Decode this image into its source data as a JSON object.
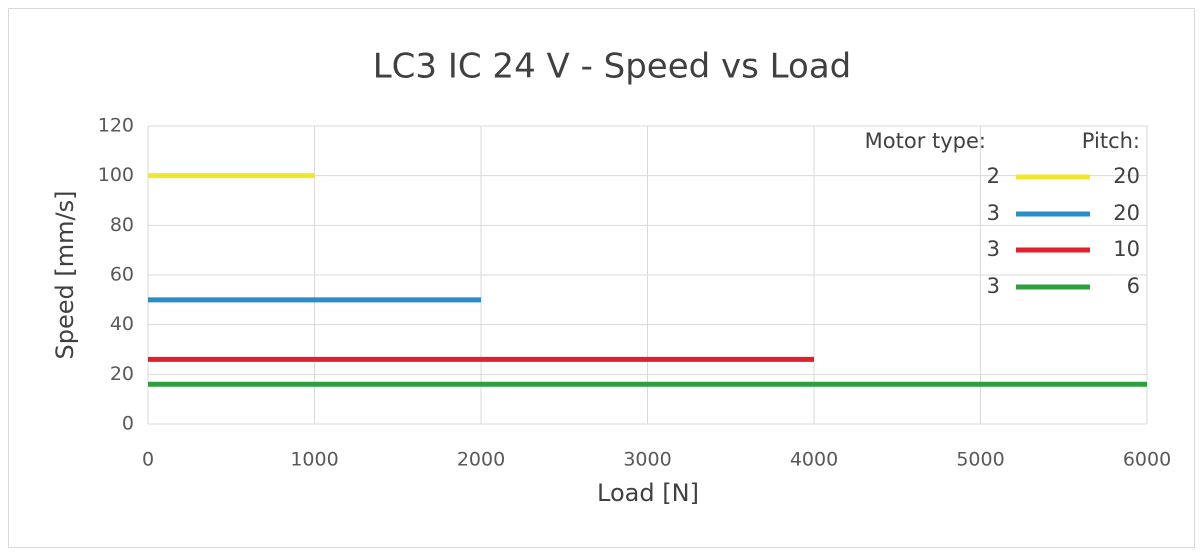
{
  "chart_data": {
    "type": "line",
    "title": "LC3 IC 24 V - Speed vs Load",
    "xlabel": "Load [N]",
    "ylabel": "Speed [mm/s]",
    "legend_headers": [
      "Motor type:",
      "Pitch:"
    ],
    "series": [
      {
        "motor_type": 2,
        "pitch": 20,
        "color": "#f5e52a",
        "x": [
          0,
          1000
        ],
        "values": [
          100,
          100
        ]
      },
      {
        "motor_type": 3,
        "pitch": 20,
        "color": "#2a8cc8",
        "x": [
          0,
          2000
        ],
        "values": [
          50,
          50
        ]
      },
      {
        "motor_type": 3,
        "pitch": 10,
        "color": "#e0202a",
        "x": [
          0,
          4000
        ],
        "values": [
          26,
          26
        ]
      },
      {
        "motor_type": 3,
        "pitch": 6,
        "color": "#2e9e3e",
        "x": [
          0,
          6000
        ],
        "values": [
          16,
          16
        ]
      }
    ],
    "xlim": [
      0,
      6000
    ],
    "xticks": [
      0,
      1000,
      2000,
      3000,
      4000,
      5000,
      6000
    ],
    "ylim": [
      0,
      120
    ],
    "yticks": [
      0,
      20,
      40,
      60,
      80,
      100,
      120
    ],
    "grid": true,
    "legend_position": "upper right"
  }
}
